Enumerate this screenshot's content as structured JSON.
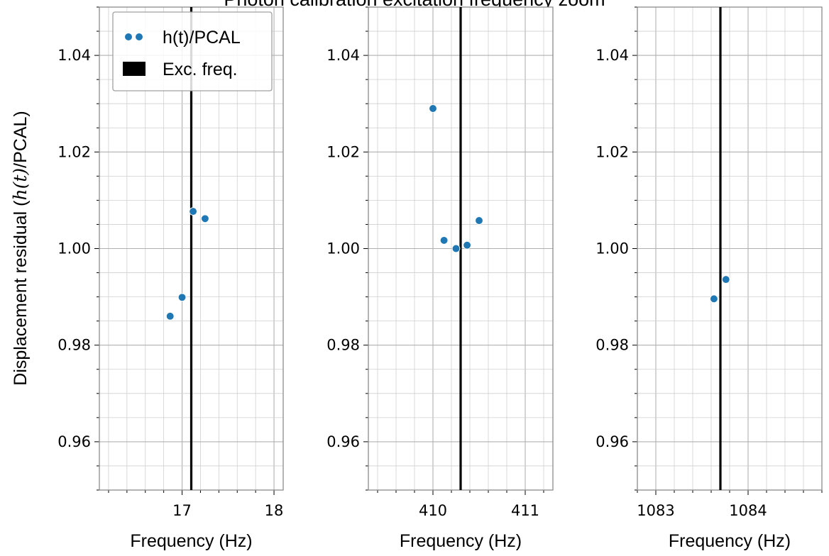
{
  "chart_data": {
    "type": "scatter",
    "title": "Photon calibration excitation frequency zoom",
    "ylabel": "Displacement residual (h(t)/PCAL)",
    "ylim": [
      0.95,
      1.05
    ],
    "y_ticks": [
      0.96,
      0.98,
      1.0,
      1.02,
      1.04
    ],
    "y_tick_labels": [
      "0.96",
      "0.98",
      "1.00",
      "1.02",
      "1.04"
    ],
    "grid": true,
    "legend": {
      "placement": "top-left",
      "entries": [
        {
          "label": "h(t)/PCAL",
          "marker": "dots",
          "color": "#1f77b4"
        },
        {
          "label": "Exc. freq.",
          "marker": "patch",
          "color": "#000000"
        }
      ]
    },
    "panels": [
      {
        "xlabel": "Frequency (Hz)",
        "xlim": [
          16.1,
          18.1
        ],
        "x_ticks": [
          17,
          18
        ],
        "x_tick_labels": [
          "17",
          "18"
        ],
        "excitation_frequency": 17.1,
        "series": [
          {
            "name": "h(t)/PCAL",
            "color": "#1f77b4",
            "points": [
              [
                16.87,
                0.986
              ],
              [
                17.0,
                0.9899
              ],
              [
                17.12,
                1.0077
              ],
              [
                17.25,
                1.0062
              ]
            ]
          }
        ]
      },
      {
        "xlabel": "Frequency (Hz)",
        "xlim": [
          409.3,
          411.3
        ],
        "x_ticks": [
          410,
          411
        ],
        "x_tick_labels": [
          "410",
          "411"
        ],
        "excitation_frequency": 410.3,
        "series": [
          {
            "name": "h(t)/PCAL",
            "color": "#1f77b4",
            "points": [
              [
                410.0,
                1.029
              ],
              [
                410.12,
                1.0017
              ],
              [
                410.25,
                1.0
              ],
              [
                410.37,
                1.0007
              ],
              [
                410.5,
                1.0058
              ]
            ]
          }
        ]
      },
      {
        "xlabel": "Frequency (Hz)",
        "xlim": [
          1082.8,
          1084.8
        ],
        "x_ticks": [
          1083,
          1084
        ],
        "x_tick_labels": [
          "1083",
          "1084"
        ],
        "excitation_frequency": 1083.7,
        "series": [
          {
            "name": "h(t)/PCAL",
            "color": "#1f77b4",
            "points": [
              [
                1083.63,
                0.9896
              ],
              [
                1083.76,
                0.9936
              ]
            ]
          }
        ]
      }
    ]
  }
}
